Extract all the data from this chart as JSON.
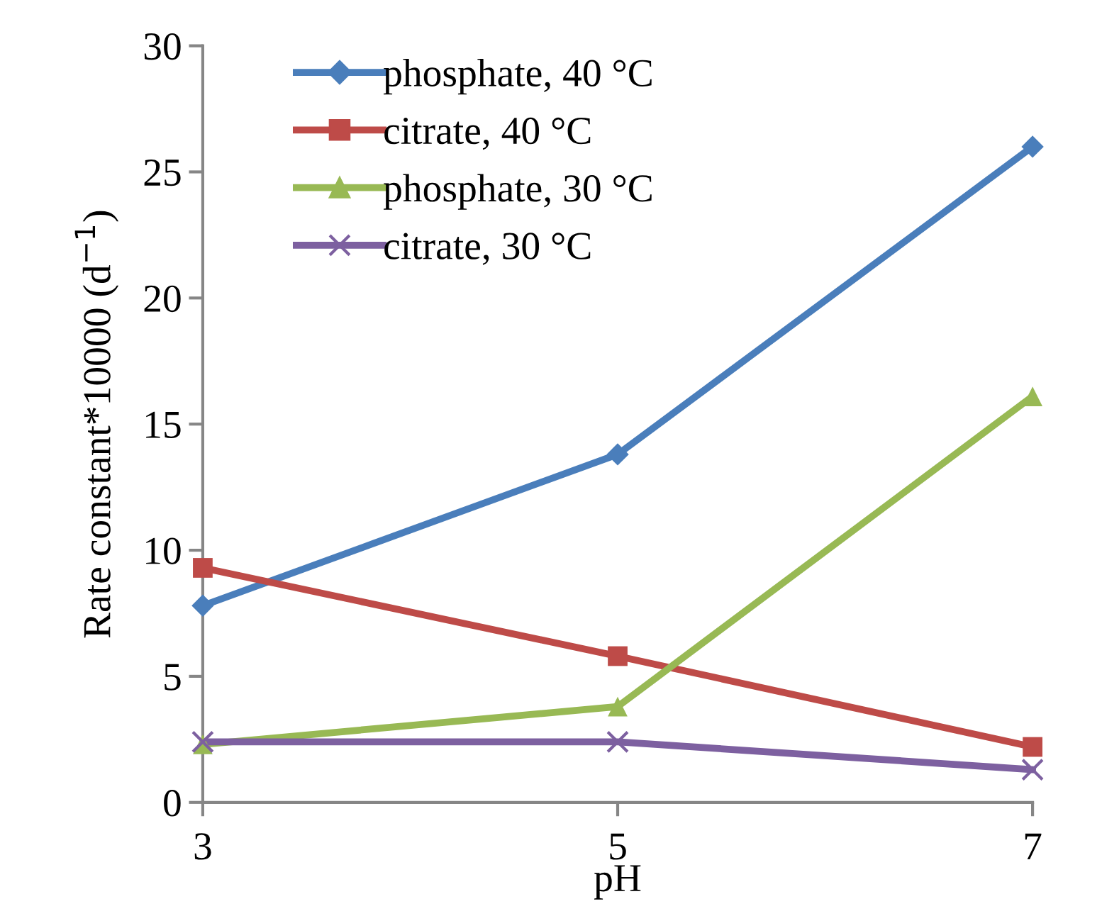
{
  "chart_data": {
    "type": "line",
    "xlabel": "pH",
    "ylabel": "Rate constant*10000 (d$^{−1}$)",
    "x": [
      3,
      5,
      7
    ],
    "xlim": [
      3,
      7
    ],
    "xticks": [
      3,
      5,
      7
    ],
    "series": [
      {
        "name": "phosphate, 40 °C",
        "color": "#4a7ebb",
        "marker": "diamond",
        "values": [
          7.8,
          13.8,
          26.0
        ]
      },
      {
        "name": "citrate, 40 °C",
        "color": "#be4b48",
        "marker": "square",
        "values": [
          9.3,
          5.8,
          2.2
        ]
      },
      {
        "name": "phosphate, 30 °C",
        "color": "#98b954",
        "marker": "triangle",
        "values": [
          2.3,
          3.8,
          16.1
        ]
      },
      {
        "name": "citrate, 30 °C",
        "color": "#7d60a0",
        "marker": "cross",
        "values": [
          2.4,
          2.4,
          1.3
        ]
      }
    ],
    "ylim": [
      0,
      30
    ],
    "yticks": [
      0,
      5,
      10,
      15,
      20,
      25,
      30
    ],
    "grid": false,
    "legend": "top left",
    "line_style": "solid"
  }
}
